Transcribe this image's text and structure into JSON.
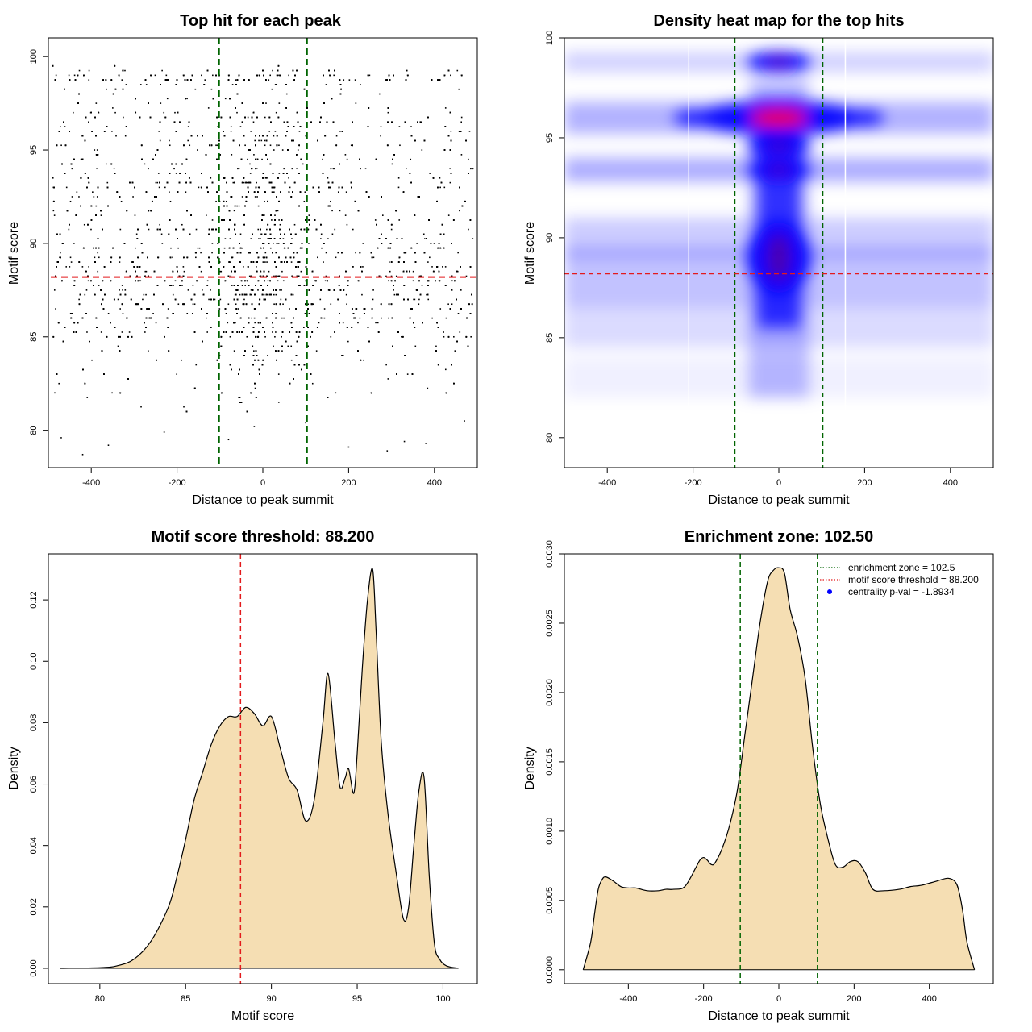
{
  "chart_data": [
    {
      "id": "scatter",
      "type": "scatter",
      "title": "Top hit for each peak",
      "xlabel": "Distance to peak summit",
      "ylabel": "Motif score",
      "xlim": [
        -500,
        500
      ],
      "ylim": [
        78,
        101
      ],
      "xticks": [
        "-400",
        "-200",
        "0",
        "200",
        "400"
      ],
      "xtick_values": [
        -400,
        -200,
        0,
        200,
        400
      ],
      "yticks": [
        "80",
        "85",
        "90",
        "95",
        "100"
      ],
      "ytick_values": [
        80,
        85,
        90,
        95,
        100
      ],
      "point_x_range": [
        -490,
        490
      ],
      "threshold": 88.2,
      "enrichment_bounds": [
        -102.5,
        102.5
      ],
      "sample_points": [
        [
          -470,
          79.6
        ],
        [
          -420,
          78.7
        ],
        [
          -360,
          79.2
        ],
        [
          -230,
          79.9
        ],
        [
          -80,
          79.5
        ],
        [
          -20,
          80.2
        ],
        [
          100,
          80.4
        ],
        [
          200,
          79.1
        ],
        [
          290,
          78.9
        ],
        [
          330,
          79.4
        ],
        [
          380,
          79.3
        ],
        [
          470,
          80.5
        ]
      ],
      "colors": {
        "points": "#000000",
        "threshold": "#e31a1c",
        "enrichment": "#006400"
      }
    },
    {
      "id": "heatmap",
      "type": "heatmap",
      "title": "Density heat map for the top hits",
      "xlabel": "Distance to peak summit",
      "ylabel": "Motif score",
      "xlim": [
        -500,
        500
      ],
      "ylim": [
        78.5,
        100
      ],
      "xticks": [
        "-400",
        "-200",
        "0",
        "200",
        "400"
      ],
      "xtick_values": [
        -400,
        -200,
        0,
        200,
        400
      ],
      "yticks": [
        "80",
        "85",
        "90",
        "95",
        "100"
      ],
      "ytick_values": [
        80,
        85,
        90,
        95,
        100
      ],
      "threshold": 88.2,
      "enrichment_bounds": [
        -102.5,
        102.5
      ],
      "hotspots": [
        {
          "x": 0,
          "y": 96.0,
          "level": "high"
        },
        {
          "x": 0,
          "y": 98.8,
          "level": "medium"
        },
        {
          "x": 0,
          "y": 89.0,
          "level": "medium"
        },
        {
          "x": 0,
          "y": 93.4,
          "level": "medium"
        },
        {
          "x": 0,
          "y": 94.6,
          "level": "medium"
        },
        {
          "x": -200,
          "y": 96.0,
          "level": "low"
        },
        {
          "x": 200,
          "y": 96.0,
          "level": "low"
        }
      ],
      "colors": {
        "low": "#ffffff",
        "mid": "#0000ff",
        "high": "#ff0000",
        "threshold": "#e31a1c",
        "enrichment": "#006400"
      }
    },
    {
      "id": "score-density",
      "type": "area",
      "title": "Motif score threshold: 88.200",
      "xlabel": "Motif score",
      "ylabel": "Density",
      "xlim": [
        77,
        102
      ],
      "ylim": [
        -0.005,
        0.135
      ],
      "xticks": [
        "80",
        "85",
        "90",
        "95",
        "100"
      ],
      "xtick_values": [
        80,
        85,
        90,
        95,
        100
      ],
      "yticks": [
        "0.00",
        "0.02",
        "0.04",
        "0.06",
        "0.08",
        "0.10",
        "0.12"
      ],
      "ytick_values": [
        0,
        0.02,
        0.04,
        0.06,
        0.08,
        0.1,
        0.12
      ],
      "threshold": 88.2,
      "x": [
        77.7,
        80,
        81,
        82,
        83,
        84,
        84.5,
        85,
        85.5,
        86,
        86.5,
        87,
        87.5,
        88,
        88.5,
        89,
        89.5,
        90,
        90.5,
        91,
        91.5,
        92,
        92.5,
        93,
        93.3,
        93.7,
        94,
        94.3,
        94.5,
        94.8,
        95,
        95.3,
        95.6,
        95.9,
        96.1,
        96.4,
        96.8,
        97.3,
        97.7,
        98,
        98.3,
        98.6,
        98.9,
        99.2,
        99.5,
        99.8,
        100.2,
        100.9
      ],
      "values": [
        0,
        0.0002,
        0.0008,
        0.003,
        0.009,
        0.02,
        0.03,
        0.042,
        0.055,
        0.064,
        0.073,
        0.079,
        0.082,
        0.082,
        0.085,
        0.083,
        0.079,
        0.082,
        0.072,
        0.062,
        0.058,
        0.048,
        0.055,
        0.08,
        0.096,
        0.074,
        0.059,
        0.062,
        0.065,
        0.057,
        0.07,
        0.098,
        0.12,
        0.13,
        0.11,
        0.074,
        0.05,
        0.03,
        0.016,
        0.02,
        0.04,
        0.058,
        0.062,
        0.03,
        0.008,
        0.003,
        0.0008,
        0
      ],
      "colors": {
        "fill": "#f5deb3",
        "line": "#000000",
        "threshold": "#e31a1c"
      }
    },
    {
      "id": "distance-density",
      "type": "area",
      "title": "Enrichment zone: 102.50",
      "xlabel": "Distance to peak summit",
      "ylabel": "Density",
      "xlim": [
        -570,
        570
      ],
      "ylim": [
        -0.0001,
        0.003
      ],
      "xticks": [
        "-400",
        "-200",
        "0",
        "200",
        "400"
      ],
      "xtick_values": [
        -400,
        -200,
        0,
        200,
        400
      ],
      "yticks": [
        "0.0000",
        "0.0005",
        "0.0010",
        "0.0015",
        "0.0020",
        "0.0025",
        "0.0030"
      ],
      "ytick_values": [
        0,
        0.0005,
        0.001,
        0.0015,
        0.002,
        0.0025,
        0.003
      ],
      "enrichment_bounds": [
        -102.5,
        102.5
      ],
      "x": [
        -520,
        -500,
        -490,
        -480,
        -470,
        -460,
        -440,
        -420,
        -400,
        -380,
        -350,
        -320,
        -300,
        -280,
        -250,
        -220,
        -210,
        -200,
        -190,
        -180,
        -170,
        -150,
        -130,
        -110,
        -90,
        -70,
        -50,
        -30,
        -15,
        0,
        15,
        30,
        50,
        70,
        90,
        110,
        130,
        150,
        170,
        190,
        210,
        230,
        250,
        280,
        320,
        350,
        380,
        420,
        450,
        470,
        480,
        490,
        500,
        520
      ],
      "values": [
        0,
        0.0002,
        0.0004,
        0.00058,
        0.00065,
        0.00067,
        0.00064,
        0.0006,
        0.00059,
        0.00059,
        0.00057,
        0.00057,
        0.00058,
        0.00058,
        0.0006,
        0.00074,
        0.00079,
        0.00081,
        0.00079,
        0.00076,
        0.00077,
        0.00088,
        0.00105,
        0.0013,
        0.0017,
        0.0021,
        0.0025,
        0.0028,
        0.00288,
        0.0029,
        0.00286,
        0.0026,
        0.0024,
        0.0021,
        0.0016,
        0.0012,
        0.00095,
        0.00076,
        0.00074,
        0.00078,
        0.00078,
        0.0007,
        0.00058,
        0.00057,
        0.00058,
        0.0006,
        0.00061,
        0.00064,
        0.00066,
        0.00063,
        0.00055,
        0.0004,
        0.0002,
        0
      ],
      "legend": [
        {
          "label": "enrichment zone = 102.5",
          "style": "dotted",
          "color": "#006400"
        },
        {
          "label": "motif score threshold = 88.200",
          "style": "dotted",
          "color": "#e31a1c"
        },
        {
          "label": "centrality p-val = -1.8934",
          "style": "point",
          "color": "#0000ff"
        }
      ],
      "legend_position": "top-right",
      "colors": {
        "fill": "#f5deb3",
        "line": "#000000",
        "enrichment": "#006400"
      }
    }
  ]
}
